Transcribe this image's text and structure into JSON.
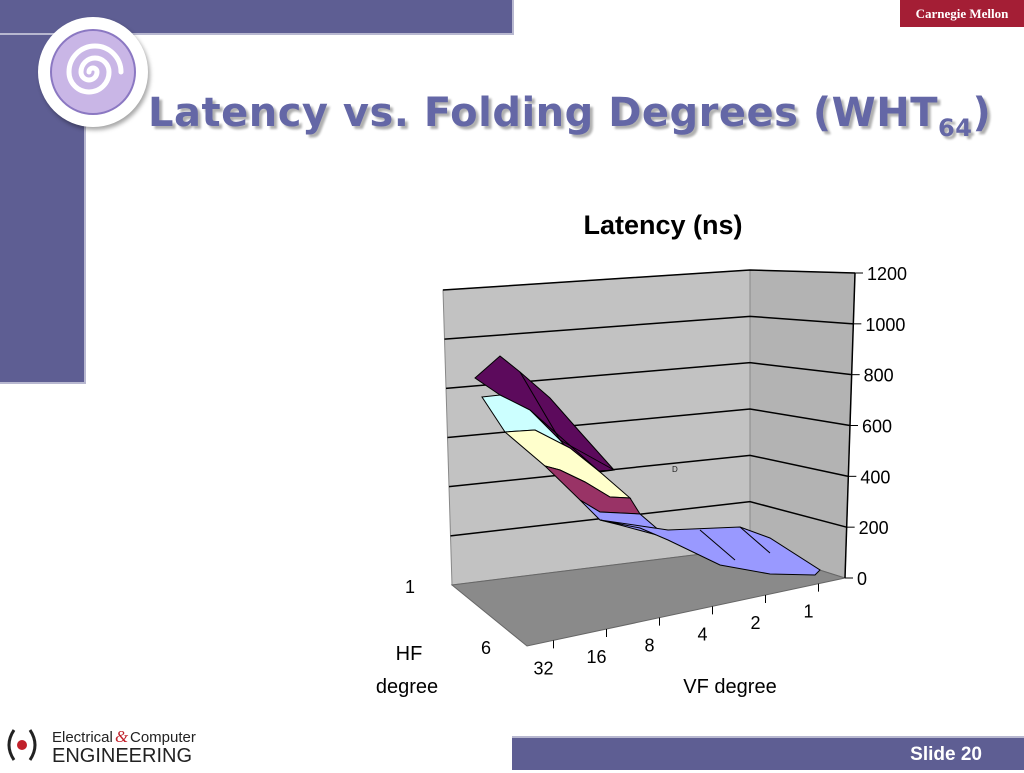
{
  "header": {
    "brand": "Carnegie Mellon"
  },
  "slide": {
    "title_main": "Latency vs. Folding Degrees (WHT",
    "title_sub": "64",
    "title_end": ")"
  },
  "footer": {
    "org_line1": "Electrical",
    "org_amp": "&",
    "org_line1b": "Computer",
    "org_line2": "ENGINEERING",
    "slide_label": "Slide 20"
  },
  "colors": {
    "accent": "#5e5e93",
    "title": "#6467a6",
    "brand_red": "#a41e35"
  },
  "chart_data": {
    "type": "surface3d",
    "title": "Latency (ns)",
    "xlabel": "VF degree",
    "ylabel": "HF degree",
    "x": [
      "32",
      "16",
      "8",
      "4",
      "2",
      "1"
    ],
    "y_ticks": [
      "1",
      "6"
    ],
    "zlim": [
      0,
      1200
    ],
    "z_ticks": [
      "0",
      "200",
      "400",
      "600",
      "800",
      "1000",
      "1200"
    ],
    "front_series": [
      850,
      380,
      40,
      0,
      0,
      0
    ],
    "annotation": "D",
    "grid": true,
    "series_colors": [
      "#5c0a5c",
      "#ccffff",
      "#ffffcc",
      "#993366",
      "#9999ff"
    ]
  }
}
